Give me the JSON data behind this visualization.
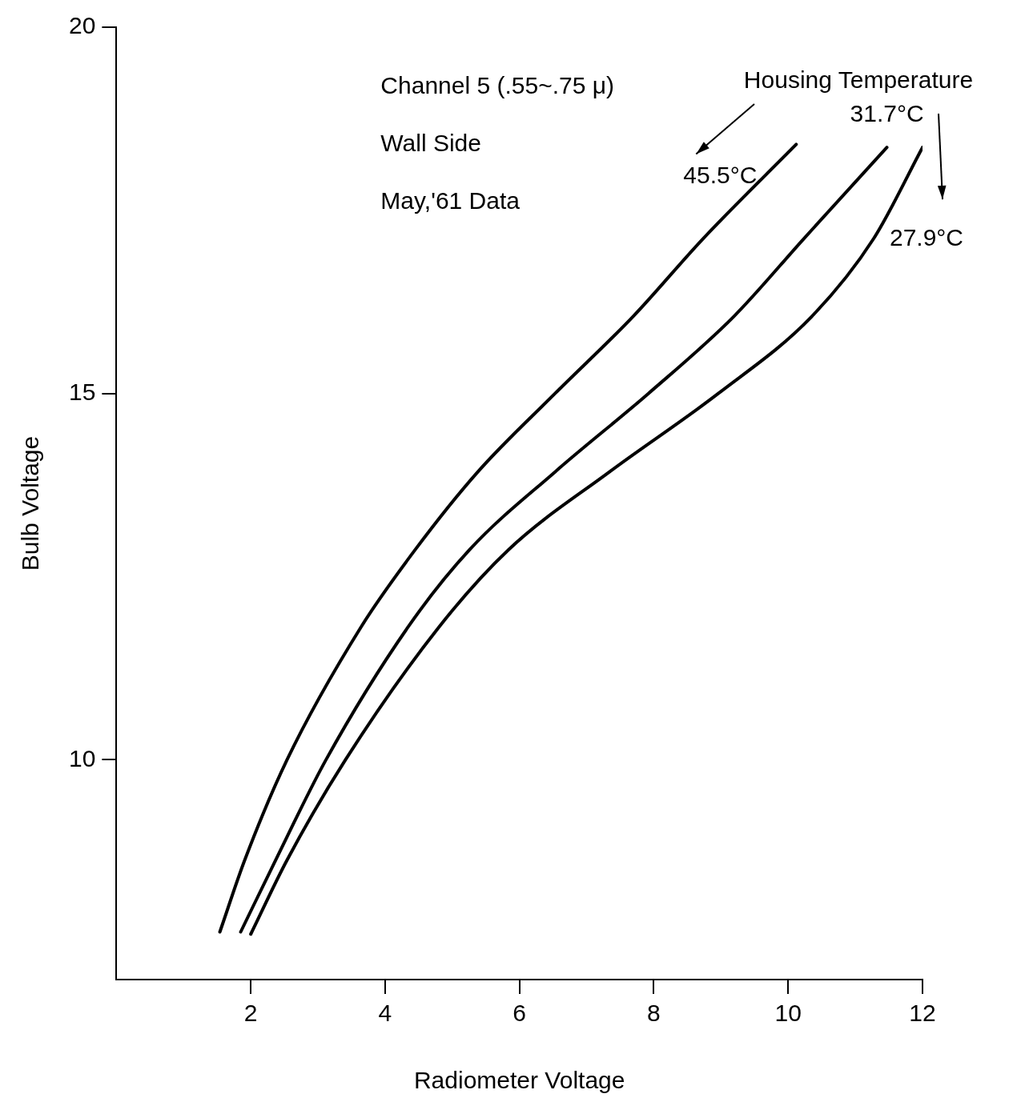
{
  "chart_data": {
    "type": "line",
    "xlabel": "Radiometer Voltage",
    "ylabel": "Bulb Voltage",
    "xlim": [
      0,
      12
    ],
    "ylim": [
      7,
      20
    ],
    "xticks": [
      2,
      4,
      6,
      8,
      10,
      12
    ],
    "yticks": [
      10,
      15,
      20
    ],
    "grid": false,
    "legend": "top right",
    "marker": "none",
    "line_style": "solid",
    "annotations": [
      "Channel 5 (.55~.75 μ)",
      "Wall Side",
      "May,'61 Data",
      "Housing Temperature"
    ],
    "series": [
      {
        "name": "45.5°C",
        "color": "#000000",
        "x": [
          1.54,
          1.91,
          2.54,
          3.64,
          4.45,
          5.38,
          6.53,
          7.69,
          8.73,
          10.12
        ],
        "values": [
          7.65,
          8.63,
          10.0,
          11.81,
          12.87,
          13.93,
          15.0,
          16.05,
          17.11,
          18.4
        ]
      },
      {
        "name": "31.7°C",
        "color": "#000000",
        "x": [
          1.85,
          2.37,
          3.12,
          4.34,
          5.26,
          6.53,
          7.92,
          9.19,
          10.23,
          11.47
        ],
        "values": [
          7.65,
          8.63,
          10.0,
          11.81,
          12.87,
          13.93,
          15.0,
          16.05,
          17.11,
          18.36
        ]
      },
      {
        "name": "27.9°C",
        "color": "#000000",
        "x": [
          2.0,
          2.54,
          3.41,
          4.8,
          5.84,
          7.34,
          8.96,
          10.35,
          11.27,
          12.0
        ],
        "values": [
          7.62,
          8.63,
          10.0,
          11.81,
          12.87,
          13.93,
          15.0,
          16.05,
          17.11,
          18.36
        ]
      }
    ]
  }
}
